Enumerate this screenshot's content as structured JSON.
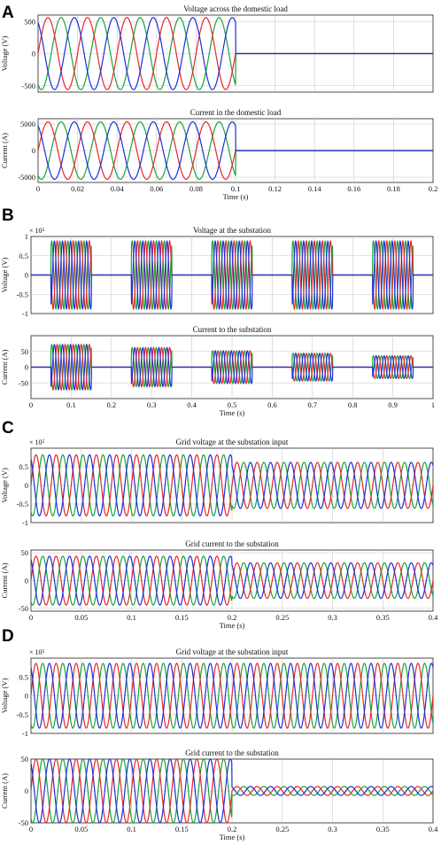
{
  "colors": {
    "phase_a": "#e8262b",
    "phase_b": "#18a33a",
    "phase_c": "#1c2fd6"
  },
  "chart_data": [
    {
      "panel": "A",
      "type": "line",
      "title": "Voltage across the domestic load",
      "xlabel": "",
      "ylabel": "Voltage (V)",
      "xlim": [
        0,
        0.2
      ],
      "ylim": [
        -600,
        600
      ],
      "yticks": [
        "-500",
        "0",
        "500"
      ],
      "y_exponent": "",
      "xticks": [],
      "grid": true,
      "signal": {
        "frequency_hz": 50,
        "amplitude": 560,
        "phases": 3,
        "on_intervals": [
          [
            0,
            0.1
          ]
        ]
      }
    },
    {
      "panel": "A",
      "type": "line",
      "title": "Current in the domestic load",
      "xlabel": "Time (s)",
      "ylabel": "Current (A)",
      "xlim": [
        0,
        0.2
      ],
      "ylim": [
        -6000,
        6000
      ],
      "yticks": [
        "-5000",
        "0",
        "5000"
      ],
      "y_exponent": "",
      "xticks": [
        "0",
        "0.02",
        "0.04",
        "0.06",
        "0.08",
        "0.1",
        "0.12",
        "0.14",
        "0.16",
        "0.18",
        "0.2"
      ],
      "grid": true,
      "signal": {
        "frequency_hz": 50,
        "amplitude": 5400,
        "phases": 3,
        "on_intervals": [
          [
            0,
            0.1
          ]
        ]
      }
    },
    {
      "panel": "B",
      "type": "line",
      "title": "Voltage at the substation",
      "xlabel": "",
      "ylabel": "Voltage (V)",
      "xlim": [
        0,
        1
      ],
      "ylim": [
        -100000,
        100000
      ],
      "yticks": [
        "-1",
        "-0.5",
        "0",
        "0.5",
        "1"
      ],
      "y_exponent": "× 10⁵",
      "xticks": [],
      "grid": true,
      "signal": {
        "frequency_hz": 50,
        "amplitude": 88000,
        "phases": 3,
        "on_intervals": [
          [
            0.05,
            0.15
          ],
          [
            0.25,
            0.35
          ],
          [
            0.45,
            0.55
          ],
          [
            0.65,
            0.75
          ],
          [
            0.85,
            0.95
          ]
        ]
      }
    },
    {
      "panel": "B",
      "type": "line",
      "title": "Current to the substation",
      "xlabel": "Time (s)",
      "ylabel": "Current (A)",
      "xlim": [
        0,
        1
      ],
      "ylim": [
        -100,
        100
      ],
      "yticks": [
        "-50",
        "0",
        "50"
      ],
      "y_exponent": "",
      "xticks": [
        "0",
        "0.1",
        "0.2",
        "0.3",
        "0.4",
        "0.5",
        "0.6",
        "0.7",
        "0.8",
        "0.9",
        "1"
      ],
      "grid": true,
      "signal": {
        "frequency_hz": 50,
        "phases": 3,
        "on_intervals": [
          [
            0.05,
            0.15
          ],
          [
            0.25,
            0.35
          ],
          [
            0.45,
            0.55
          ],
          [
            0.65,
            0.75
          ],
          [
            0.85,
            0.95
          ]
        ],
        "interval_amplitudes": [
          72,
          62,
          52,
          44,
          36
        ]
      }
    },
    {
      "panel": "C",
      "type": "line",
      "title": "Grid voltage at the substation input",
      "xlabel": "",
      "ylabel": "Voltage (V)",
      "xlim": [
        0,
        0.4
      ],
      "ylim": [
        -100000,
        100000
      ],
      "yticks": [
        "-1",
        "-0.5",
        "0",
        "0.5"
      ],
      "y_exponent": "× 10⁵",
      "xticks": [],
      "grid": true,
      "signal": {
        "frequency_hz": 50,
        "phases": 3,
        "step_time": 0.2,
        "amplitude_before": 82000,
        "amplitude_after": 62000
      }
    },
    {
      "panel": "C",
      "type": "line",
      "title": "Grid current to the substation",
      "xlabel": "Time (s)",
      "ylabel": "Current (A)",
      "xlim": [
        0,
        0.4
      ],
      "ylim": [
        -55,
        55
      ],
      "yticks": [
        "-50",
        "0",
        "50"
      ],
      "y_exponent": "",
      "xticks": [
        "0",
        "0.05",
        "0.1",
        "0.15",
        "0.2",
        "0.25",
        "0.3",
        "0.35",
        "0.4"
      ],
      "grid": true,
      "signal": {
        "frequency_hz": 50,
        "phases": 3,
        "step_time": 0.2,
        "amplitude_before": 44,
        "amplitude_after": 32
      }
    },
    {
      "panel": "D",
      "type": "line",
      "title": "Grid voltage at the substation input",
      "xlabel": "",
      "ylabel": "Voltage (V)",
      "xlim": [
        0,
        0.4
      ],
      "ylim": [
        -100000,
        100000
      ],
      "yticks": [
        "-1",
        "-0.5",
        "0",
        "0.5"
      ],
      "y_exponent": "× 10⁵",
      "xticks": [],
      "grid": true,
      "signal": {
        "frequency_hz": 50,
        "phases": 3,
        "step_time": 0.2,
        "amplitude_before": 86000,
        "amplitude_after": 86000
      }
    },
    {
      "panel": "D",
      "type": "line",
      "title": "Grid current to the substation",
      "xlabel": "Time (s)",
      "ylabel": "Current (A)",
      "xlim": [
        0,
        0.4
      ],
      "ylim": [
        -50,
        50
      ],
      "yticks": [
        "-50",
        "0",
        "50"
      ],
      "y_exponent": "",
      "xticks": [
        "0",
        "0.05",
        "0.1",
        "0.15",
        "0.2",
        "0.25",
        "0.3",
        "0.35",
        "0.4"
      ],
      "grid": true,
      "signal": {
        "frequency_hz": 50,
        "phases": 3,
        "step_time": 0.2,
        "amplitude_before": 50,
        "amplitude_after": 7
      }
    }
  ]
}
